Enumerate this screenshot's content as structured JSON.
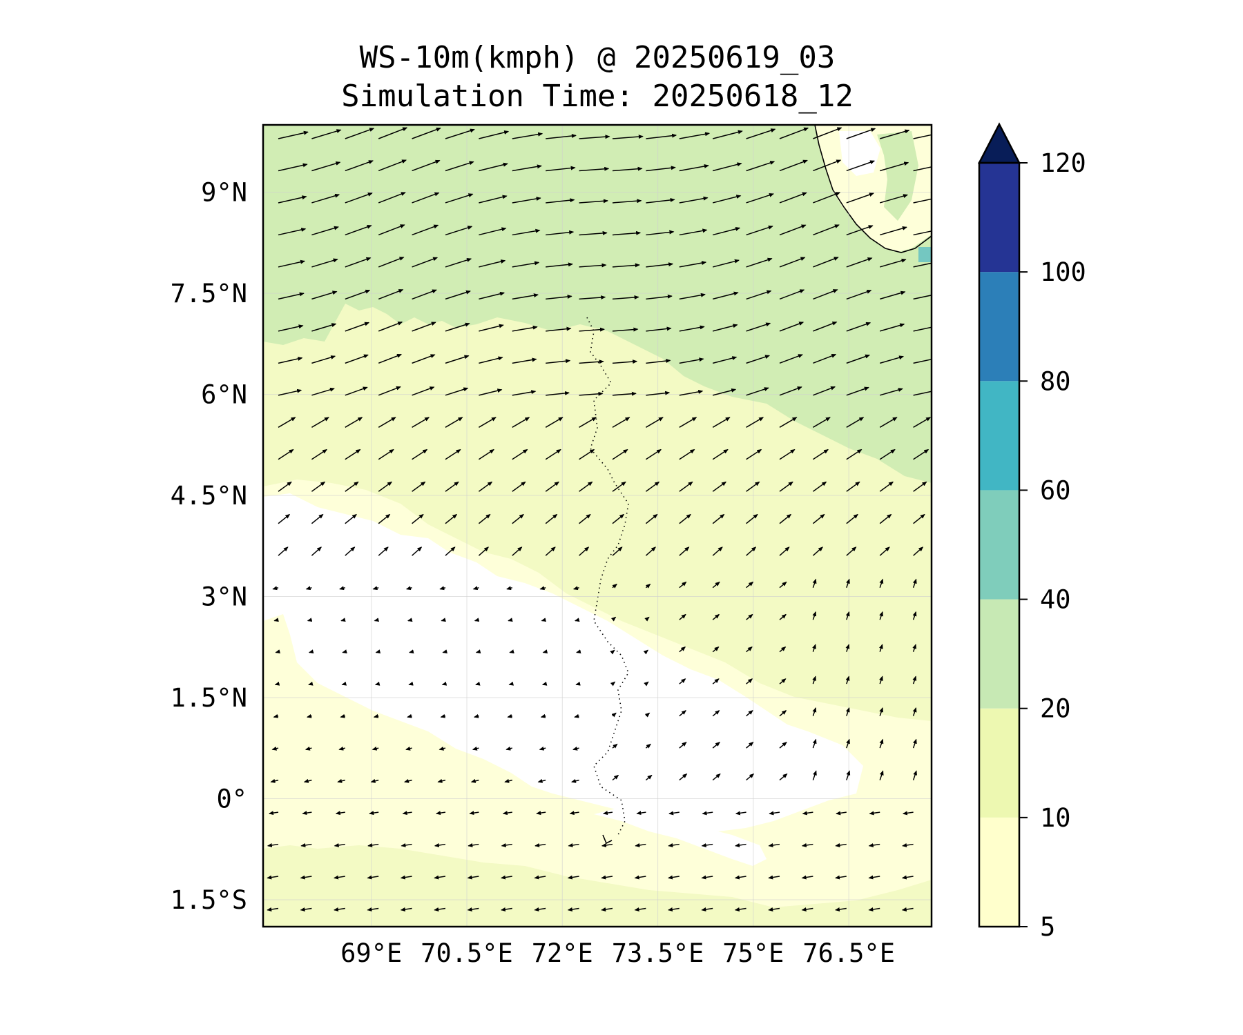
{
  "title": {
    "line1": "WS-10m(kmph) @ 20250619_03",
    "line2": "Simulation Time: 20250618_12"
  },
  "map": {
    "lon_range": [
      67.3,
      77.8
    ],
    "lat_range": [
      -1.9,
      10.0
    ],
    "lon_ticks": [
      {
        "value": 69.0,
        "label": "69°E"
      },
      {
        "value": 70.5,
        "label": "70.5°E"
      },
      {
        "value": 72.0,
        "label": "72°E"
      },
      {
        "value": 73.5,
        "label": "73.5°E"
      },
      {
        "value": 75.0,
        "label": "75°E"
      },
      {
        "value": 76.5,
        "label": "76.5°E"
      }
    ],
    "lat_ticks": [
      {
        "value": 9.0,
        "label": "9°N"
      },
      {
        "value": 7.5,
        "label": "7.5°N"
      },
      {
        "value": 6.0,
        "label": "6°N"
      },
      {
        "value": 4.5,
        "label": "4.5°N"
      },
      {
        "value": 3.0,
        "label": "3°N"
      },
      {
        "value": 1.5,
        "label": "1.5°N"
      },
      {
        "value": 0.0,
        "label": "0°"
      },
      {
        "value": -1.5,
        "label": "1.5°S"
      }
    ],
    "grid": true,
    "wind_arrows": true
  },
  "colorbar": {
    "levels": [
      5,
      10,
      20,
      40,
      60,
      80,
      100,
      120
    ],
    "labels": [
      "5",
      "10",
      "20",
      "40",
      "60",
      "80",
      "100",
      "120"
    ],
    "colors": [
      "#ffffcc",
      "#edf8b1",
      "#c7e9b4",
      "#7fcdbb",
      "#41b6c4",
      "#2c7fb8",
      "#253494"
    ],
    "extend_color": "#081d58",
    "extend": "max"
  },
  "colors": {
    "white_fill": "#ffffff",
    "lightest_fill": "#feffd9",
    "light_fill": "#f1fac0",
    "green_fill": "#d1edb4",
    "teal_fill": "#74c7c1"
  }
}
